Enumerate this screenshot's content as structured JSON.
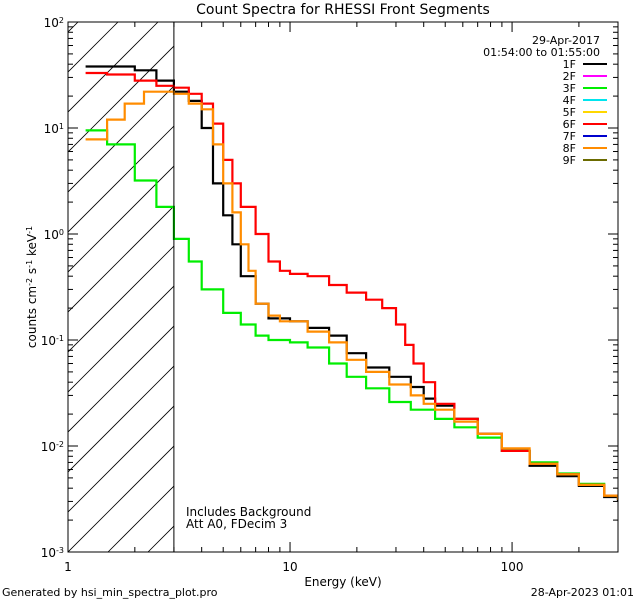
{
  "chart_data": {
    "type": "line",
    "title": "Count Spectra for RHESSI Front Segments",
    "xlabel": "Energy (keV)",
    "ylabel": "counts cm-2 s-1 keV-1",
    "xscale": "log",
    "yscale": "log",
    "xlim": [
      1,
      300
    ],
    "ylim": [
      0.001,
      100
    ],
    "x_tick_labels": [
      {
        "value": 1,
        "label": "1"
      },
      {
        "value": 10,
        "label": "10"
      },
      {
        "value": 100,
        "label": "100"
      }
    ],
    "y_tick_labels": [
      {
        "value": 0.001,
        "base": "10",
        "exp": "-3"
      },
      {
        "value": 0.01,
        "base": "10",
        "exp": "-2"
      },
      {
        "value": 0.1,
        "base": "10",
        "exp": "-1"
      },
      {
        "value": 1,
        "base": "10",
        "exp": "0"
      },
      {
        "value": 10,
        "base": "10",
        "exp": "1"
      },
      {
        "value": 100,
        "base": "10",
        "exp": "2"
      }
    ],
    "date_label": "29-Apr-2017",
    "time_range_label": "01:54:00 to 01:55:00",
    "legend": [
      {
        "name": "1F",
        "color": "#000000"
      },
      {
        "name": "2F",
        "color": "#ff00ff"
      },
      {
        "name": "3F",
        "color": "#00ee00"
      },
      {
        "name": "4F",
        "color": "#00e5ee"
      },
      {
        "name": "5F",
        "color": "#ffd700"
      },
      {
        "name": "6F",
        "color": "#ff0000"
      },
      {
        "name": "7F",
        "color": "#0000cd"
      },
      {
        "name": "8F",
        "color": "#ff8c00"
      },
      {
        "name": "9F",
        "color": "#6b6b00"
      }
    ],
    "annotations": [
      "Includes Background",
      "Att A0, FDecim 3"
    ],
    "shaded_region": {
      "xmin": 1,
      "xmax": 3,
      "style": "diagonal hatch"
    },
    "series": [
      {
        "name": "1F",
        "color": "#000000",
        "points": [
          [
            1.2,
            38
          ],
          [
            1.5,
            38
          ],
          [
            2,
            35
          ],
          [
            2.5,
            28
          ],
          [
            3,
            22
          ],
          [
            3.5,
            18
          ],
          [
            4,
            10
          ],
          [
            4.5,
            3
          ],
          [
            5,
            1.5
          ],
          [
            5.5,
            0.8
          ],
          [
            6,
            0.4
          ],
          [
            7,
            0.22
          ],
          [
            8,
            0.16
          ],
          [
            10,
            0.15
          ],
          [
            12,
            0.13
          ],
          [
            15,
            0.11
          ],
          [
            18,
            0.075
          ],
          [
            22,
            0.055
          ],
          [
            28,
            0.045
          ],
          [
            35,
            0.036
          ],
          [
            40,
            0.028
          ],
          [
            45,
            0.024
          ],
          [
            55,
            0.018
          ],
          [
            70,
            0.013
          ],
          [
            90,
            0.009
          ],
          [
            120,
            0.0065
          ],
          [
            160,
            0.0052
          ],
          [
            200,
            0.0042
          ],
          [
            260,
            0.0033
          ],
          [
            300,
            0.003
          ]
        ]
      },
      {
        "name": "3F",
        "color": "#00ee00",
        "points": [
          [
            1.2,
            9.5
          ],
          [
            1.5,
            7
          ],
          [
            2,
            3.2
          ],
          [
            2.5,
            1.8
          ],
          [
            3,
            0.9
          ],
          [
            3.5,
            0.55
          ],
          [
            4,
            0.3
          ],
          [
            5,
            0.18
          ],
          [
            6,
            0.14
          ],
          [
            7,
            0.11
          ],
          [
            8,
            0.1
          ],
          [
            10,
            0.095
          ],
          [
            12,
            0.085
          ],
          [
            15,
            0.06
          ],
          [
            18,
            0.045
          ],
          [
            22,
            0.035
          ],
          [
            28,
            0.026
          ],
          [
            35,
            0.022
          ],
          [
            45,
            0.018
          ],
          [
            55,
            0.015
          ],
          [
            70,
            0.012
          ],
          [
            90,
            0.009
          ],
          [
            120,
            0.007
          ],
          [
            160,
            0.0055
          ],
          [
            200,
            0.0044
          ],
          [
            260,
            0.0034
          ],
          [
            300,
            0.0031
          ]
        ]
      },
      {
        "name": "6F",
        "color": "#ff0000",
        "points": [
          [
            1.2,
            33
          ],
          [
            1.5,
            32
          ],
          [
            2,
            28
          ],
          [
            2.5,
            25
          ],
          [
            3,
            24
          ],
          [
            3.5,
            21
          ],
          [
            4,
            17
          ],
          [
            4.5,
            11
          ],
          [
            5,
            5
          ],
          [
            5.5,
            3
          ],
          [
            6,
            1.8
          ],
          [
            7,
            1
          ],
          [
            8,
            0.55
          ],
          [
            9,
            0.45
          ],
          [
            10,
            0.42
          ],
          [
            12,
            0.4
          ],
          [
            15,
            0.33
          ],
          [
            18,
            0.28
          ],
          [
            22,
            0.24
          ],
          [
            26,
            0.2
          ],
          [
            30,
            0.14
          ],
          [
            33,
            0.09
          ],
          [
            36,
            0.06
          ],
          [
            40,
            0.04
          ],
          [
            45,
            0.025
          ],
          [
            55,
            0.018
          ],
          [
            70,
            0.013
          ],
          [
            90,
            0.009
          ],
          [
            120,
            0.0068
          ],
          [
            160,
            0.0054
          ],
          [
            200,
            0.0043
          ],
          [
            260,
            0.0034
          ],
          [
            300,
            0.0031
          ]
        ]
      },
      {
        "name": "8F",
        "color": "#ff8c00",
        "points": [
          [
            1.2,
            7.8
          ],
          [
            1.5,
            12
          ],
          [
            1.8,
            17
          ],
          [
            2.2,
            22
          ],
          [
            2.7,
            22
          ],
          [
            3,
            21
          ],
          [
            3.5,
            17
          ],
          [
            4,
            15
          ],
          [
            4.5,
            7
          ],
          [
            5,
            3
          ],
          [
            5.5,
            1.6
          ],
          [
            6,
            0.8
          ],
          [
            6.5,
            0.45
          ],
          [
            7,
            0.22
          ],
          [
            8,
            0.17
          ],
          [
            9,
            0.15
          ],
          [
            10,
            0.15
          ],
          [
            12,
            0.12
          ],
          [
            15,
            0.095
          ],
          [
            18,
            0.065
          ],
          [
            22,
            0.05
          ],
          [
            28,
            0.038
          ],
          [
            35,
            0.03
          ],
          [
            40,
            0.025
          ],
          [
            45,
            0.022
          ],
          [
            55,
            0.017
          ],
          [
            70,
            0.013
          ],
          [
            90,
            0.0095
          ],
          [
            120,
            0.0068
          ],
          [
            160,
            0.0054
          ],
          [
            200,
            0.0043
          ],
          [
            260,
            0.0034
          ],
          [
            300,
            0.0031
          ]
        ]
      }
    ]
  },
  "footer": {
    "generated_by": "Generated by hsi_min_spectra_plot.pro",
    "date": "28-Apr-2023 01:01"
  }
}
